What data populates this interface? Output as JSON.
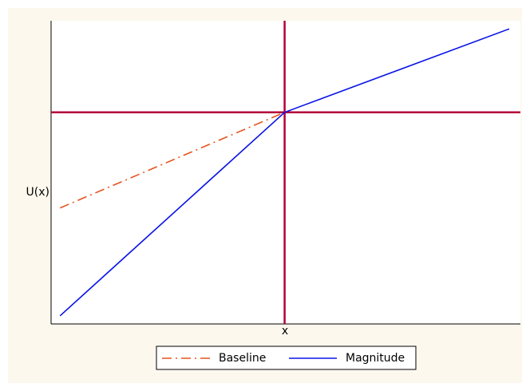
{
  "chart_data": {
    "type": "line",
    "x_label": "x",
    "y_label": "U(x)",
    "xlim": [
      -1.04,
      1.05
    ],
    "ylim": [
      -1.04,
      0.45
    ],
    "reference_x": 0,
    "reference_y": 0,
    "reference_color": "#b5003a",
    "series": [
      {
        "name": "Baseline",
        "color": "#e8531f",
        "dash": "dashdot",
        "x": [
          -1,
          0
        ],
        "values": [
          -0.47,
          0
        ]
      },
      {
        "name": "Magnitude",
        "color": "#0a14e6",
        "dash": "solid",
        "x": [
          -1,
          0,
          1
        ],
        "values": [
          -1,
          0,
          0.41
        ]
      }
    ],
    "legend": "bottom"
  }
}
